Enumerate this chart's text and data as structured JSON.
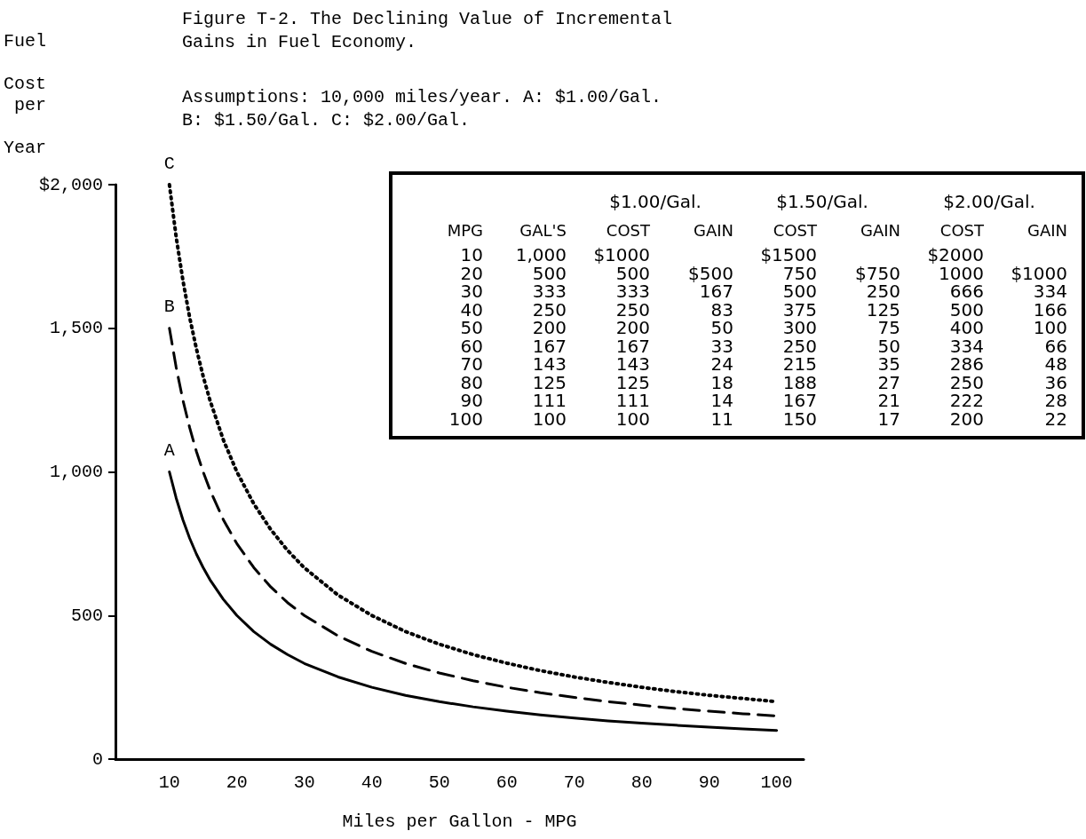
{
  "chart_data": [
    {
      "type": "line",
      "title": "Figure T-2. The Declining Value of Incremental Gains in Fuel Economy.",
      "subtitle": "Assumptions: 10,000 miles/year. A: $1.00/Gal. B: $1.50/Gal. C: $2.00/Gal.",
      "xlabel": "Miles per Gallon - MPG",
      "ylabel": "Fuel Cost per Year",
      "x": [
        10,
        11,
        12,
        13,
        14,
        15,
        16,
        18,
        20,
        22.5,
        25,
        27.5,
        30,
        35,
        40,
        45,
        50,
        55,
        60,
        65,
        70,
        75,
        80,
        85,
        90,
        95,
        100
      ],
      "series": [
        {
          "name": "A",
          "color": "#000000",
          "line_style": "solid",
          "values": [
            1000,
            909,
            833,
            769,
            714,
            667,
            625,
            556,
            500,
            444,
            400,
            364,
            333,
            286,
            250,
            222,
            200,
            182,
            167,
            154,
            143,
            133,
            125,
            118,
            111,
            105,
            100
          ]
        },
        {
          "name": "B",
          "color": "#000000",
          "line_style": "dashed",
          "values": [
            1500,
            1364,
            1250,
            1154,
            1071,
            1000,
            938,
            833,
            750,
            667,
            600,
            545,
            500,
            429,
            375,
            333,
            300,
            273,
            250,
            231,
            215,
            200,
            188,
            176,
            167,
            158,
            150
          ]
        },
        {
          "name": "C",
          "color": "#000000",
          "line_style": "dotted",
          "values": [
            2000,
            1818,
            1667,
            1538,
            1429,
            1333,
            1250,
            1111,
            1000,
            889,
            800,
            727,
            666,
            571,
            500,
            444,
            400,
            364,
            334,
            308,
            286,
            267,
            250,
            235,
            222,
            211,
            200
          ]
        }
      ],
      "xlim": [
        2,
        104
      ],
      "xticks": [
        10,
        20,
        30,
        40,
        50,
        60,
        70,
        80,
        90,
        100
      ],
      "ylim": [
        0,
        2000
      ],
      "yticks": [
        0,
        500,
        {
          "value": 1000,
          "label": "1,000"
        },
        {
          "value": 1500,
          "label": "1,500"
        },
        {
          "value": 2000,
          "label": "$2,000"
        }
      ],
      "grid": false,
      "legend": false,
      "marker": "none"
    },
    {
      "type": "other",
      "categories": [
        "MPG",
        "GAL'S",
        "COST",
        "GAIN",
        "COST",
        "GAIN",
        "COST",
        "GAIN"
      ],
      "annotations": [
        "$1.00/Gal.",
        "$1.50/Gal.",
        "$2.00/Gal."
      ],
      "cells": [
        [
          "10",
          "1,000",
          "$1000",
          null,
          "$1500",
          null,
          "$2000",
          null
        ],
        [
          "20",
          "500",
          "500",
          "$500",
          "750",
          "$750",
          "1000",
          "$1000"
        ],
        [
          "30",
          "333",
          "333",
          "167",
          "500",
          "250",
          "666",
          "334"
        ],
        [
          "40",
          "250",
          "250",
          "83",
          "375",
          "125",
          "500",
          "166"
        ],
        [
          "50",
          "200",
          "200",
          "50",
          "300",
          "75",
          "400",
          "100"
        ],
        [
          "60",
          "167",
          "167",
          "33",
          "250",
          "50",
          "334",
          "66"
        ],
        [
          "70",
          "143",
          "143",
          "24",
          "215",
          "35",
          "286",
          "48"
        ],
        [
          "80",
          "125",
          "125",
          "18",
          "188",
          "27",
          "250",
          "36"
        ],
        [
          "90",
          "111",
          "111",
          "14",
          "167",
          "21",
          "222",
          "28"
        ],
        [
          "100",
          "100",
          "100",
          "11",
          "150",
          "17",
          "200",
          "22"
        ]
      ]
    }
  ]
}
